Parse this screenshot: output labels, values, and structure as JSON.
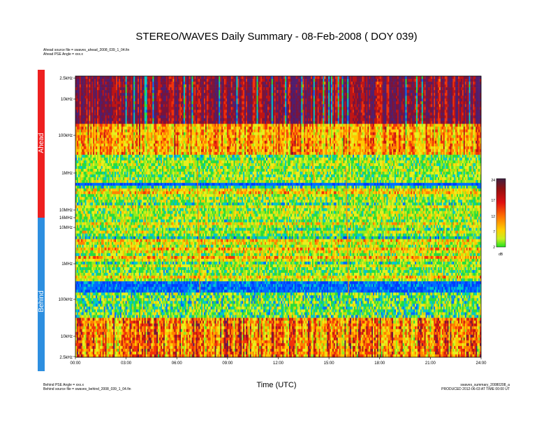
{
  "title": "STEREO/WAVES Daily Summary - 08-Feb-2008 ( DOY 039)",
  "header_notes": [
    "Ahead source file = swaves_ahead_2008_039_1_04.fin",
    "Ahead PSE Angle = xxx.x"
  ],
  "footer_left": [
    "Behind PSE Angle = xxx.x",
    "Behind source file = swaves_behind_2008_039_1_04.fin"
  ],
  "footer_right": [
    "swaves_summary_20080208_a",
    "PRODUCED 2012-06-03 AT TIME 00:00 UT"
  ],
  "colors": {
    "ahead_bar": "#ee2020",
    "behind_bar": "#2d8fe0"
  },
  "chart_data": {
    "type": "heatmap",
    "xlabel": "Time (UTC)",
    "x_ticks": [
      "00:00",
      "03:00",
      "06:00",
      "09:00",
      "12:00",
      "15:00",
      "18:00",
      "21:00",
      "24:00"
    ],
    "xlim_hours": [
      0,
      24
    ],
    "panels": [
      {
        "name": "Ahead",
        "y_ticks": [
          "2.5kHz",
          "10kHz",
          "100kHz",
          "1MHz",
          "10MHz",
          "16MHz"
        ],
        "y_scale": "log"
      },
      {
        "name": "Behind",
        "y_ticks": [
          "10MHz",
          "1MHz",
          "100kHz",
          "10kHz",
          "2.5kHz"
        ],
        "y_scale": "log"
      }
    ],
    "colorbar": {
      "unit": "dB",
      "ticks": [
        2,
        7,
        12,
        17,
        24
      ],
      "range": [
        2,
        24
      ]
    },
    "features": [
      {
        "time_hours": 7.2,
        "panel": "both",
        "kind": "radio burst"
      },
      {
        "time_hours": 16.0,
        "panel": "both",
        "kind": "radio burst"
      },
      {
        "time_hours": 14.0,
        "panel": "Ahead",
        "kind": "radio burst"
      }
    ]
  }
}
